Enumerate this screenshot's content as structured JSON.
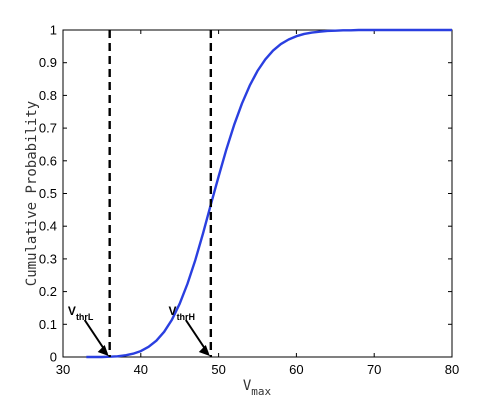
{
  "chart_data": {
    "type": "line",
    "title": "",
    "xlabel": "V",
    "xlabel_sub": "max",
    "ylabel": "Cumulative Probability",
    "xlim": [
      30,
      80
    ],
    "ylim": [
      0,
      1
    ],
    "x_ticks": [
      30,
      40,
      50,
      60,
      70,
      80
    ],
    "y_ticks": [
      0,
      0.1,
      0.2,
      0.3,
      0.4,
      0.5,
      0.6,
      0.7,
      0.8,
      0.9,
      1
    ],
    "grid": false,
    "series": [
      {
        "color": "#2a3fe0",
        "x": [
          33,
          34,
          35,
          36,
          37,
          38,
          39,
          40,
          41,
          42,
          43,
          44,
          45,
          46,
          47,
          48,
          49,
          50,
          51,
          52,
          53,
          54,
          55,
          56,
          57,
          58,
          59,
          60,
          61,
          62,
          63,
          64,
          65,
          66,
          67,
          68,
          69,
          70,
          71,
          72,
          73,
          74,
          75,
          76,
          77,
          78,
          79,
          80
        ],
        "y": [
          0.0,
          0.0,
          0.0,
          0.001,
          0.002,
          0.005,
          0.01,
          0.018,
          0.031,
          0.05,
          0.077,
          0.114,
          0.163,
          0.224,
          0.296,
          0.378,
          0.466,
          0.552,
          0.635,
          0.71,
          0.775,
          0.83,
          0.875,
          0.91,
          0.937,
          0.957,
          0.971,
          0.981,
          0.988,
          0.992,
          0.995,
          0.997,
          0.998,
          0.999,
          0.999,
          1.0,
          1.0,
          1.0,
          1.0,
          1.0,
          1.0,
          1.0,
          1.0,
          1.0,
          1.0,
          1.0,
          1.0,
          1.0
        ]
      }
    ],
    "thresholds": [
      {
        "name": "V",
        "sub": "thrL",
        "x": 36
      },
      {
        "name": "V",
        "sub": "thrH",
        "x": 49
      }
    ]
  }
}
